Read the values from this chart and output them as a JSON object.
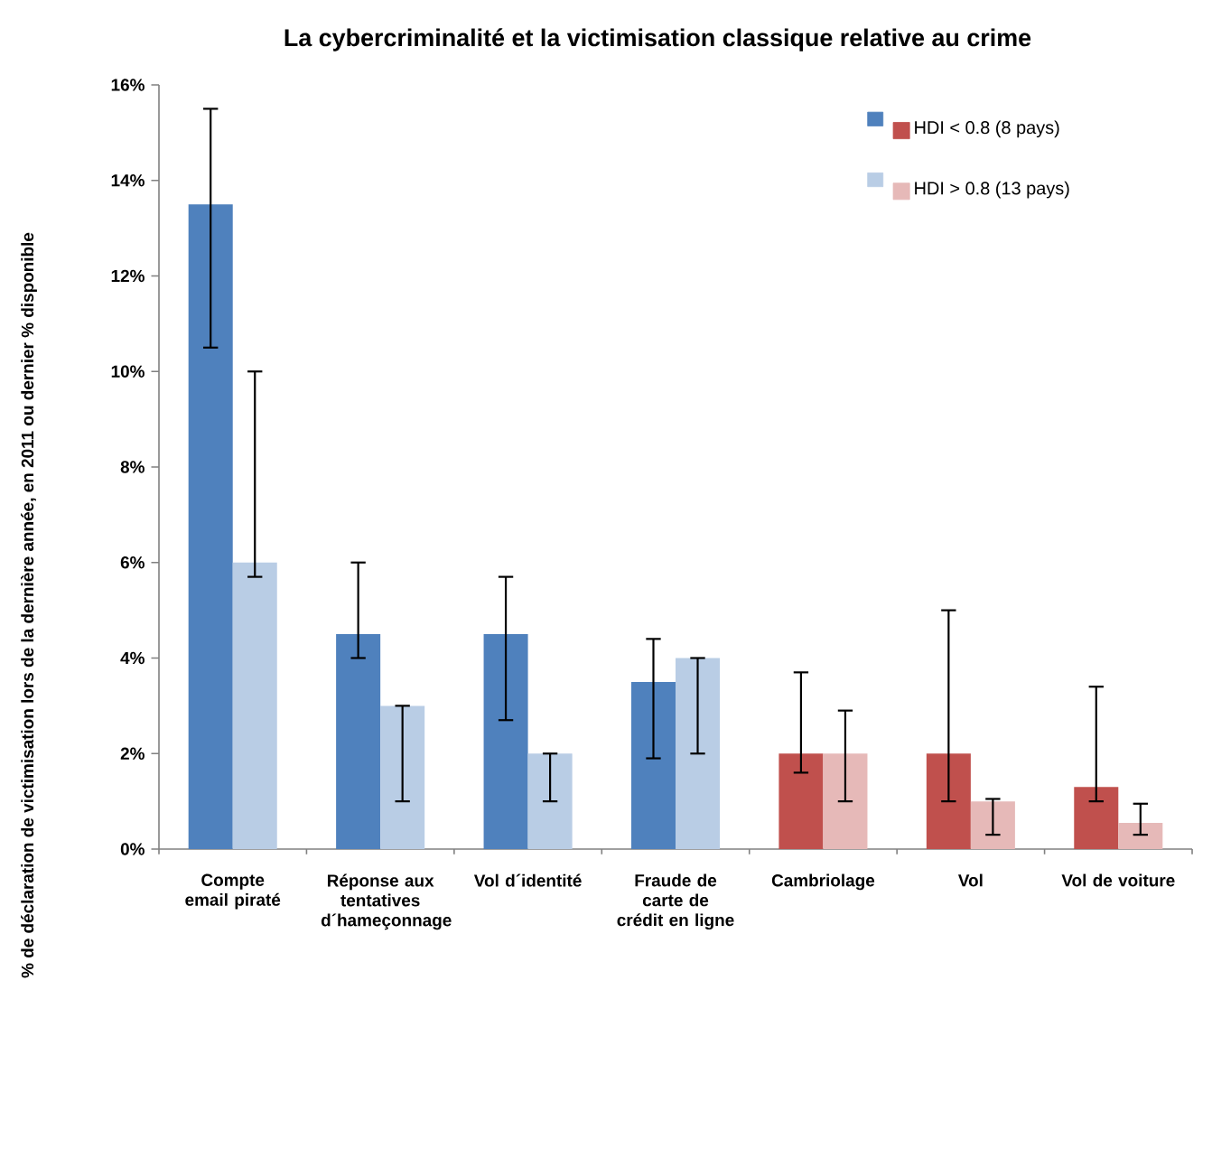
{
  "chart_data": {
    "type": "bar",
    "title": "La cybercriminalité et la victimisation classique relative au crime",
    "ylabel": "% de déclaration de victimisation lors de la dernière année, en 2011 ou dernier % disponible",
    "categories": [
      "Compte email piraté",
      "Réponse aux tentatives d´hameçonnage",
      "Vol d´identité",
      "Fraude de carte de crédit en ligne",
      "Cambriolage",
      "Vol",
      "Vol de voiture"
    ],
    "series": [
      {
        "name": "HDI < 0.8 (8 pays)",
        "colors": [
          "#4f81bd",
          "#4f81bd",
          "#4f81bd",
          "#4f81bd",
          "#c0504d",
          "#c0504d",
          "#c0504d"
        ],
        "values": [
          13.5,
          4.5,
          4.5,
          3.5,
          2.0,
          2.0,
          1.3
        ],
        "errors": [
          [
            10.5,
            15.5
          ],
          [
            4.0,
            6.0
          ],
          [
            2.7,
            5.7
          ],
          [
            1.9,
            4.4
          ],
          [
            1.6,
            3.7
          ],
          [
            1.0,
            5.0
          ],
          [
            1.0,
            3.4
          ]
        ]
      },
      {
        "name": "HDI > 0.8 (13 pays)",
        "colors": [
          "#b9cde5",
          "#b9cde5",
          "#b9cde5",
          "#b9cde5",
          "#e6b9b8",
          "#e6b9b8",
          "#e6b9b8"
        ],
        "values": [
          6.0,
          3.0,
          2.0,
          4.0,
          2.0,
          1.0,
          0.55
        ],
        "errors": [
          [
            5.7,
            10.0
          ],
          [
            1.0,
            3.0
          ],
          [
            1.0,
            2.0
          ],
          [
            2.0,
            4.0
          ],
          [
            1.0,
            2.9
          ],
          [
            0.3,
            1.05
          ],
          [
            0.3,
            0.95
          ]
        ]
      }
    ],
    "ylim": [
      0,
      16
    ],
    "yticks": [
      {
        "value": 0,
        "label": "0%"
      },
      {
        "value": 2,
        "label": "2%"
      },
      {
        "value": 4,
        "label": "4%"
      },
      {
        "value": 6,
        "label": "6%"
      },
      {
        "value": 8,
        "label": "8%"
      },
      {
        "value": 10,
        "label": "10%"
      },
      {
        "value": 12,
        "label": "12%"
      },
      {
        "value": 14,
        "label": "14%"
      },
      {
        "value": 16,
        "label": "16%"
      }
    ],
    "legend": "top right"
  }
}
